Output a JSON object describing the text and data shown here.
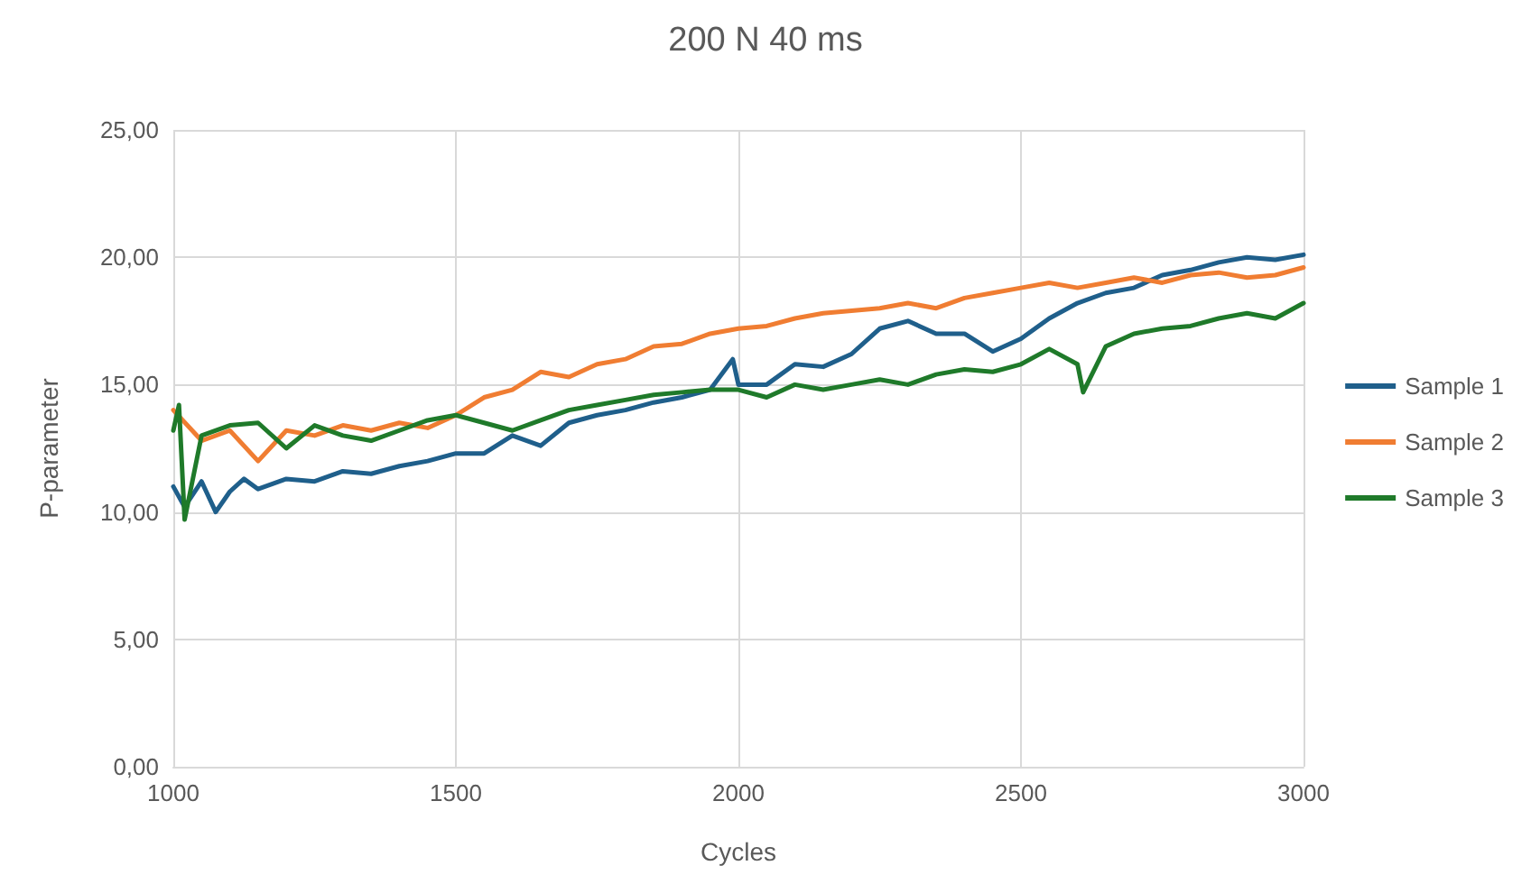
{
  "chart_data": {
    "type": "line",
    "title": "200 N 40 ms",
    "xlabel": "Cycles",
    "ylabel": "P-parameter",
    "xlim": [
      1000,
      3000
    ],
    "xticks": [
      1000,
      1500,
      2000,
      2500,
      3000
    ],
    "ylim": [
      0,
      25
    ],
    "yticks": [
      {
        "value": 0,
        "label": "0,00"
      },
      {
        "value": 5,
        "label": "5,00"
      },
      {
        "value": 10,
        "label": "10,00"
      },
      {
        "value": 15,
        "label": "15,00"
      },
      {
        "value": 20,
        "label": "20,00"
      },
      {
        "value": 25,
        "label": "25,00"
      }
    ],
    "grid": true,
    "legend": "right",
    "marker": "none",
    "line_style": "solid",
    "series": [
      {
        "name": "Sample 1",
        "color": "#1f5f8b",
        "x": [
          1000,
          1020,
          1050,
          1075,
          1100,
          1125,
          1150,
          1200,
          1250,
          1300,
          1350,
          1400,
          1450,
          1500,
          1550,
          1600,
          1650,
          1700,
          1750,
          1800,
          1850,
          1900,
          1950,
          1990,
          2000,
          2050,
          2100,
          2150,
          2200,
          2250,
          2300,
          2350,
          2400,
          2450,
          2500,
          2550,
          2600,
          2650,
          2700,
          2750,
          2800,
          2850,
          2900,
          2950,
          3000
        ],
        "values": [
          11.0,
          10.2,
          11.2,
          10.0,
          10.8,
          11.3,
          10.9,
          11.3,
          11.2,
          11.6,
          11.5,
          11.8,
          12.0,
          12.3,
          12.3,
          13.0,
          12.6,
          13.5,
          13.8,
          14.0,
          14.3,
          14.5,
          14.8,
          16.0,
          15.0,
          15.0,
          15.8,
          15.7,
          16.2,
          17.2,
          17.5,
          17.0,
          17.0,
          16.3,
          16.8,
          17.6,
          18.2,
          18.6,
          18.8,
          19.3,
          19.5,
          19.8,
          20.0,
          19.9,
          20.1
        ]
      },
      {
        "name": "Sample 2",
        "color": "#f07d32",
        "x": [
          1000,
          1050,
          1100,
          1150,
          1200,
          1250,
          1300,
          1350,
          1400,
          1450,
          1500,
          1550,
          1600,
          1650,
          1700,
          1750,
          1800,
          1850,
          1900,
          1950,
          2000,
          2050,
          2100,
          2150,
          2200,
          2250,
          2300,
          2350,
          2400,
          2450,
          2500,
          2550,
          2600,
          2650,
          2700,
          2750,
          2800,
          2850,
          2900,
          2950,
          3000
        ],
        "values": [
          14.0,
          12.8,
          13.2,
          12.0,
          13.2,
          13.0,
          13.4,
          13.2,
          13.5,
          13.3,
          13.8,
          14.5,
          14.8,
          15.5,
          15.3,
          15.8,
          16.0,
          16.5,
          16.6,
          17.0,
          17.2,
          17.3,
          17.6,
          17.8,
          17.9,
          18.0,
          18.2,
          18.0,
          18.4,
          18.6,
          18.8,
          19.0,
          18.8,
          19.0,
          19.2,
          19.0,
          19.3,
          19.4,
          19.2,
          19.3,
          19.6
        ]
      },
      {
        "name": "Sample 3",
        "color": "#1f7a2a",
        "x": [
          1000,
          1010,
          1020,
          1050,
          1100,
          1150,
          1200,
          1250,
          1300,
          1350,
          1400,
          1450,
          1500,
          1550,
          1600,
          1650,
          1700,
          1750,
          1800,
          1850,
          1900,
          1950,
          2000,
          2050,
          2100,
          2150,
          2200,
          2250,
          2300,
          2350,
          2400,
          2450,
          2500,
          2550,
          2600,
          2610,
          2650,
          2700,
          2750,
          2800,
          2850,
          2900,
          2950,
          3000
        ],
        "values": [
          13.2,
          14.2,
          9.7,
          13.0,
          13.4,
          13.5,
          12.5,
          13.4,
          13.0,
          12.8,
          13.2,
          13.6,
          13.8,
          13.5,
          13.2,
          13.6,
          14.0,
          14.2,
          14.4,
          14.6,
          14.7,
          14.8,
          14.8,
          14.5,
          15.0,
          14.8,
          15.0,
          15.2,
          15.0,
          15.4,
          15.6,
          15.5,
          15.8,
          16.4,
          15.8,
          14.7,
          16.5,
          17.0,
          17.2,
          17.3,
          17.6,
          17.8,
          17.6,
          18.2
        ]
      }
    ]
  }
}
